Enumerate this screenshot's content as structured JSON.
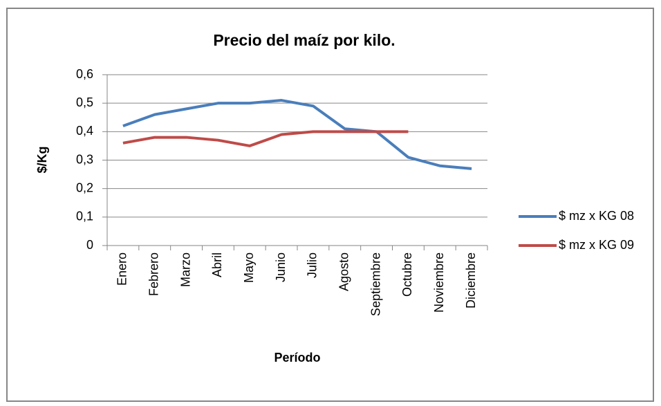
{
  "chart_data": {
    "type": "line",
    "title": "Precio del maíz por kilo.",
    "x_label": "Período",
    "y_label": "$/Kg",
    "categories": [
      "Enero",
      "Febrero",
      "Marzo",
      "Abril",
      "Mayo",
      "Junio",
      "Julio",
      "Agosto",
      "Septiembre",
      "Octubre",
      "Noviembre",
      "Diciembre"
    ],
    "series": [
      {
        "name": "$ mz x KG 08",
        "color": "#4a7ebb",
        "values": [
          0.42,
          0.46,
          0.48,
          0.5,
          0.5,
          0.51,
          0.49,
          0.41,
          0.4,
          0.31,
          0.28,
          0.27
        ]
      },
      {
        "name": "$ mz x KG 09",
        "color": "#be4b48",
        "values": [
          0.36,
          0.38,
          0.38,
          0.37,
          0.35,
          0.39,
          0.4,
          0.4,
          0.4,
          0.4,
          null,
          null
        ]
      }
    ],
    "ylim": [
      0,
      0.6
    ],
    "yticks": [
      0,
      {
        "value": 0.1,
        "label": "0,1"
      },
      {
        "value": 0.2,
        "label": "0,2"
      },
      {
        "value": 0.3,
        "label": "0,3"
      },
      {
        "value": 0.4,
        "label": "0,4"
      },
      {
        "value": 0.5,
        "label": "0,5"
      },
      {
        "value": 0.6,
        "label": "0,6"
      }
    ],
    "grid": true,
    "legend": "right"
  }
}
